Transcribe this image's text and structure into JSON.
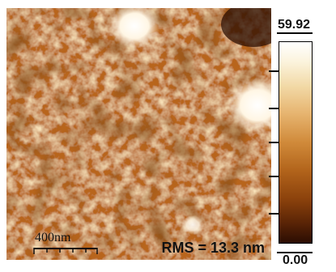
{
  "image": {
    "rms_text": "RMS = 13.3 nm",
    "scale_bar_text": "400nm"
  },
  "colorbar": {
    "max_label": "59.92",
    "min_label": "0.00",
    "colors": [
      "#ffffff",
      "#f2d9a6",
      "#d08a3a",
      "#8c420c",
      "#2b0d02"
    ]
  }
}
